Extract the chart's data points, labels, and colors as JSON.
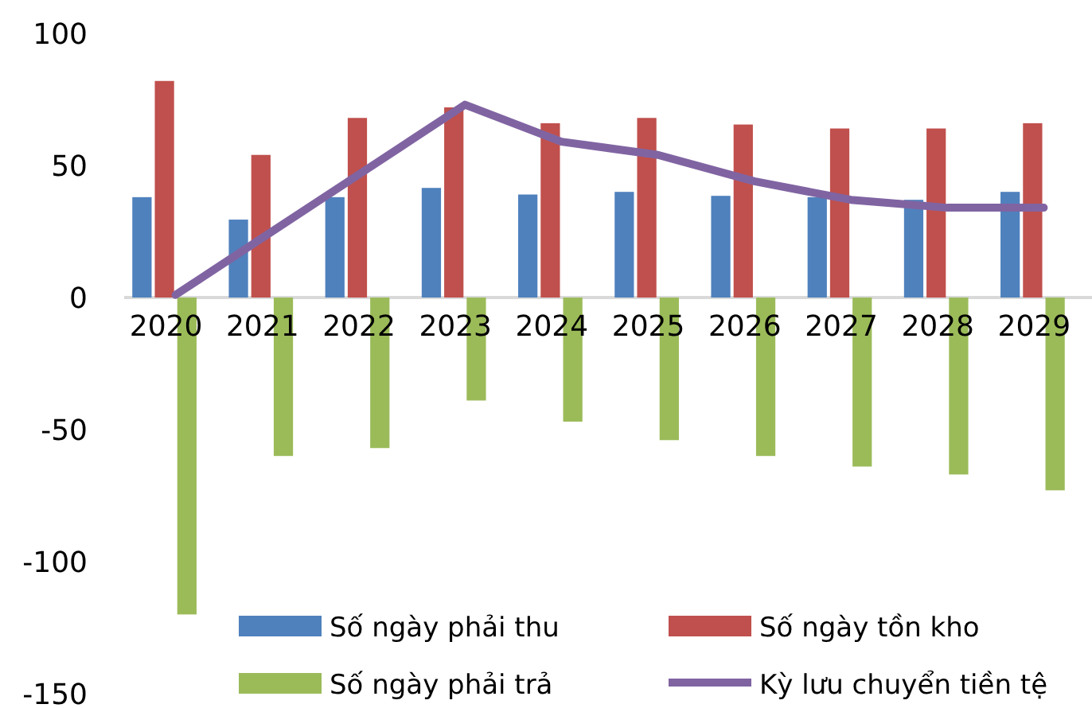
{
  "chart_data": {
    "type": "bar",
    "categories": [
      "2020",
      "2021",
      "2022",
      "2023",
      "2024",
      "2025",
      "2026",
      "2027",
      "2028",
      "2029"
    ],
    "series": [
      {
        "name": "Số ngày phải thu",
        "color": "#4f81bd",
        "values": [
          38,
          29.5,
          38,
          41.5,
          39,
          40,
          38.5,
          38,
          37,
          40
        ]
      },
      {
        "name": "Số ngày tồn kho",
        "color": "#c0504d",
        "values": [
          82,
          54,
          68,
          72,
          66,
          68,
          65.5,
          64,
          64,
          66
        ]
      },
      {
        "name": "Số ngày phải trả",
        "color": "#9bbb59",
        "values": [
          -120,
          -60,
          -57,
          -39,
          -47,
          -54,
          -60,
          -64,
          -67,
          -73
        ]
      },
      {
        "name": "Kỳ lưu chuyển tiền tệ",
        "color": "#8064a2",
        "type": "line",
        "values": [
          1,
          25,
          49,
          73,
          59,
          54,
          44,
          37,
          34,
          34
        ]
      }
    ],
    "ylim": [
      -150,
      100
    ],
    "yticks": [
      -150,
      -100,
      -50,
      0,
      50,
      100
    ],
    "grid": false,
    "legend": "bottom"
  }
}
